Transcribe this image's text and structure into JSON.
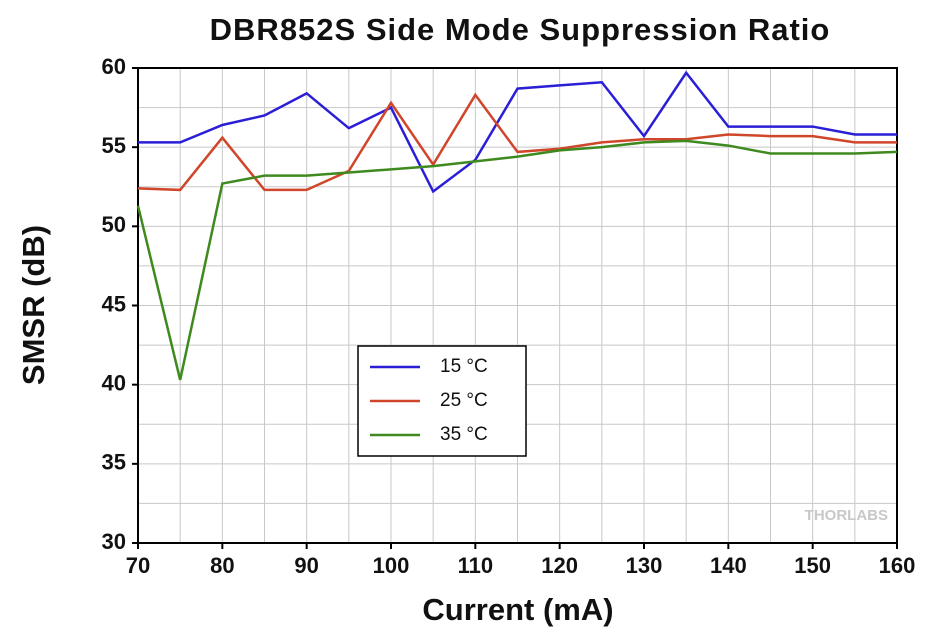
{
  "chart_data": {
    "type": "line",
    "title": "DBR852S Side Mode Suppression Ratio",
    "x_label": "Current (mA)",
    "y_label": "SMSR (dB)",
    "watermark": "THORLABS",
    "x": [
      70,
      75,
      80,
      85,
      90,
      95,
      100,
      105,
      110,
      115,
      120,
      125,
      130,
      135,
      140,
      145,
      150,
      155,
      160
    ],
    "series": [
      {
        "name": "15 °C",
        "color": "#2a1ed6",
        "values": [
          55.3,
          55.3,
          56.4,
          57.0,
          58.4,
          56.2,
          57.5,
          52.2,
          54.2,
          58.7,
          58.9,
          59.1,
          55.7,
          59.7,
          56.3,
          56.3,
          56.3,
          55.8,
          55.8
        ]
      },
      {
        "name": "25 °C",
        "color": "#d0462a",
        "values": [
          52.4,
          52.3,
          55.6,
          52.3,
          52.3,
          53.5,
          57.8,
          53.9,
          58.3,
          54.7,
          54.9,
          55.3,
          55.5,
          55.5,
          55.8,
          55.7,
          55.7,
          55.3,
          55.3
        ]
      },
      {
        "name": "35 °C",
        "color": "#3f8a1f",
        "values": [
          51.3,
          40.3,
          52.7,
          53.2,
          53.2,
          53.4,
          53.6,
          53.8,
          54.1,
          54.4,
          54.8,
          55.0,
          55.3,
          55.4,
          55.1,
          54.6,
          54.6,
          54.6,
          54.7
        ]
      }
    ],
    "xlim": [
      70,
      160
    ],
    "xticks": [
      70,
      80,
      90,
      100,
      110,
      120,
      130,
      140,
      150,
      160
    ],
    "x_minor_ticks": [
      75,
      85,
      95,
      105,
      115,
      125,
      135,
      145,
      155
    ],
    "ylim": [
      30,
      60
    ],
    "yticks": [
      30,
      35,
      40,
      45,
      50,
      55,
      60
    ],
    "y_minor_ticks": [
      32.5,
      37.5,
      42.5,
      47.5,
      52.5,
      57.5
    ],
    "grid": true
  }
}
